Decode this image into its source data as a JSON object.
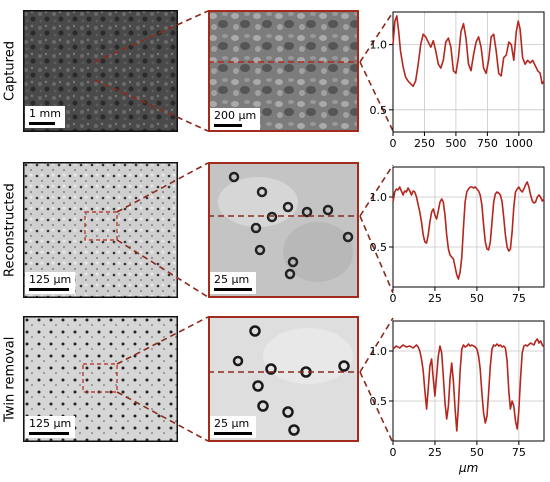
{
  "rows": [
    {
      "label": "Captured",
      "full_scale": "1 mm",
      "zoom_scale": "200 µm",
      "chart": {
        "x_ticks": [
          0,
          250,
          500,
          750,
          1000
        ],
        "x_max": 1200,
        "y_ticks": [
          0.5,
          1.0
        ],
        "y_min": 0.33,
        "y_max": 1.25,
        "points": [
          [
            0,
            1.0
          ],
          [
            15,
            1.18
          ],
          [
            30,
            1.22
          ],
          [
            45,
            1.1
          ],
          [
            60,
            0.95
          ],
          [
            80,
            0.83
          ],
          [
            100,
            0.75
          ],
          [
            120,
            0.72
          ],
          [
            140,
            0.7
          ],
          [
            160,
            0.68
          ],
          [
            180,
            0.72
          ],
          [
            200,
            0.85
          ],
          [
            220,
            1.0
          ],
          [
            240,
            1.08
          ],
          [
            260,
            1.06
          ],
          [
            280,
            1.02
          ],
          [
            300,
            0.98
          ],
          [
            320,
            1.03
          ],
          [
            340,
            0.95
          ],
          [
            360,
            0.85
          ],
          [
            380,
            0.82
          ],
          [
            400,
            0.88
          ],
          [
            420,
            1.02
          ],
          [
            440,
            1.05
          ],
          [
            460,
            0.98
          ],
          [
            480,
            0.8
          ],
          [
            500,
            0.78
          ],
          [
            520,
            0.9
          ],
          [
            540,
            1.1
          ],
          [
            560,
            1.16
          ],
          [
            580,
            1.05
          ],
          [
            600,
            0.85
          ],
          [
            620,
            0.8
          ],
          [
            640,
            0.92
          ],
          [
            660,
            1.02
          ],
          [
            680,
            1.06
          ],
          [
            700,
            0.98
          ],
          [
            720,
            0.82
          ],
          [
            740,
            0.78
          ],
          [
            760,
            0.88
          ],
          [
            780,
            1.06
          ],
          [
            800,
            1.08
          ],
          [
            820,
            0.95
          ],
          [
            840,
            0.78
          ],
          [
            860,
            0.76
          ],
          [
            880,
            0.9
          ],
          [
            900,
            0.92
          ],
          [
            920,
            1.02
          ],
          [
            940,
            1.0
          ],
          [
            960,
            0.88
          ],
          [
            980,
            1.1
          ],
          [
            995,
            1.18
          ],
          [
            1010,
            1.12
          ],
          [
            1030,
            0.9
          ],
          [
            1050,
            0.85
          ],
          [
            1070,
            0.88
          ],
          [
            1090,
            0.86
          ],
          [
            1110,
            0.88
          ],
          [
            1130,
            0.84
          ],
          [
            1150,
            0.8
          ],
          [
            1170,
            0.78
          ],
          [
            1185,
            0.7
          ],
          [
            1200,
            0.72
          ]
        ]
      }
    },
    {
      "label": "Reconstructed",
      "full_scale": "125 µm",
      "zoom_scale": "25 µm",
      "chart": {
        "x_ticks": [
          0,
          25,
          50,
          75
        ],
        "x_max": 90,
        "y_ticks": [
          0.5,
          1.0
        ],
        "y_min": 0.1,
        "y_max": 1.3,
        "points": [
          [
            0,
            0.95
          ],
          [
            1,
            1.05
          ],
          [
            2,
            1.08
          ],
          [
            3,
            1.07
          ],
          [
            4,
            1.1
          ],
          [
            5,
            1.06
          ],
          [
            6,
            1.02
          ],
          [
            7,
            1.06
          ],
          [
            8,
            1.05
          ],
          [
            9,
            1.09
          ],
          [
            10,
            1.06
          ],
          [
            11,
            1.02
          ],
          [
            12,
            1.06
          ],
          [
            13,
            1.05
          ],
          [
            14,
            1.0
          ],
          [
            15,
            0.92
          ],
          [
            16,
            0.85
          ],
          [
            17,
            0.75
          ],
          [
            18,
            0.62
          ],
          [
            19,
            0.55
          ],
          [
            20,
            0.54
          ],
          [
            21,
            0.62
          ],
          [
            22,
            0.75
          ],
          [
            23,
            0.85
          ],
          [
            24,
            0.88
          ],
          [
            25,
            0.82
          ],
          [
            26,
            0.78
          ],
          [
            27,
            0.86
          ],
          [
            28,
            0.95
          ],
          [
            29,
            0.98
          ],
          [
            30,
            0.95
          ],
          [
            31,
            0.82
          ],
          [
            32,
            0.62
          ],
          [
            33,
            0.48
          ],
          [
            34,
            0.42
          ],
          [
            35,
            0.4
          ],
          [
            36,
            0.38
          ],
          [
            37,
            0.3
          ],
          [
            38,
            0.22
          ],
          [
            39,
            0.18
          ],
          [
            40,
            0.25
          ],
          [
            41,
            0.4
          ],
          [
            42,
            0.7
          ],
          [
            43,
            0.95
          ],
          [
            44,
            1.05
          ],
          [
            45,
            1.08
          ],
          [
            46,
            1.1
          ],
          [
            47,
            1.1
          ],
          [
            48,
            1.09
          ],
          [
            49,
            1.1
          ],
          [
            50,
            1.08
          ],
          [
            51,
            1.06
          ],
          [
            52,
            1.02
          ],
          [
            53,
            0.92
          ],
          [
            54,
            0.72
          ],
          [
            55,
            0.55
          ],
          [
            56,
            0.48
          ],
          [
            57,
            0.47
          ],
          [
            58,
            0.55
          ],
          [
            59,
            0.75
          ],
          [
            60,
            0.95
          ],
          [
            61,
            1.03
          ],
          [
            62,
            1.05
          ],
          [
            63,
            1.04
          ],
          [
            64,
            1.02
          ],
          [
            65,
            0.95
          ],
          [
            66,
            0.8
          ],
          [
            67,
            0.62
          ],
          [
            68,
            0.5
          ],
          [
            69,
            0.46
          ],
          [
            70,
            0.48
          ],
          [
            71,
            0.65
          ],
          [
            72,
            0.9
          ],
          [
            73,
            1.05
          ],
          [
            74,
            1.08
          ],
          [
            75,
            1.1
          ],
          [
            76,
            1.07
          ],
          [
            77,
            1.05
          ],
          [
            78,
            1.08
          ],
          [
            79,
            1.12
          ],
          [
            80,
            1.15
          ],
          [
            81,
            1.1
          ],
          [
            82,
            1.02
          ],
          [
            83,
            0.96
          ],
          [
            84,
            0.94
          ],
          [
            85,
            0.95
          ],
          [
            86,
            1.0
          ],
          [
            87,
            1.02
          ],
          [
            88,
            1.0
          ],
          [
            89,
            0.96
          ],
          [
            90,
            0.98
          ]
        ]
      }
    },
    {
      "label": "Twin removal",
      "full_scale": "125 µm",
      "zoom_scale": "25 µm",
      "chart": {
        "x_ticks": [
          0,
          25,
          50,
          75
        ],
        "x_max": 90,
        "y_ticks": [
          0.5,
          1.0
        ],
        "y_min": 0.1,
        "y_max": 1.3,
        "points": [
          [
            0,
            1.02
          ],
          [
            2,
            1.05
          ],
          [
            4,
            1.03
          ],
          [
            6,
            1.06
          ],
          [
            8,
            1.04
          ],
          [
            10,
            1.05
          ],
          [
            12,
            1.03
          ],
          [
            14,
            1.06
          ],
          [
            15,
            1.04
          ],
          [
            16,
            1.0
          ],
          [
            17,
            0.92
          ],
          [
            18,
            0.8
          ],
          [
            19,
            0.6
          ],
          [
            20,
            0.42
          ],
          [
            21,
            0.62
          ],
          [
            22,
            0.85
          ],
          [
            23,
            0.92
          ],
          [
            24,
            0.72
          ],
          [
            25,
            0.55
          ],
          [
            26,
            0.75
          ],
          [
            27,
            0.95
          ],
          [
            28,
            1.05
          ],
          [
            29,
            0.98
          ],
          [
            30,
            0.75
          ],
          [
            31,
            0.48
          ],
          [
            32,
            0.32
          ],
          [
            33,
            0.45
          ],
          [
            34,
            0.72
          ],
          [
            35,
            0.88
          ],
          [
            36,
            0.7
          ],
          [
            37,
            0.42
          ],
          [
            38,
            0.2
          ],
          [
            39,
            0.45
          ],
          [
            40,
            0.8
          ],
          [
            41,
            1.02
          ],
          [
            42,
            1.06
          ],
          [
            43,
            1.04
          ],
          [
            44,
            1.05
          ],
          [
            45,
            1.07
          ],
          [
            46,
            1.05
          ],
          [
            47,
            1.06
          ],
          [
            48,
            1.05
          ],
          [
            49,
            1.04
          ],
          [
            50,
            1.02
          ],
          [
            51,
            0.95
          ],
          [
            52,
            0.82
          ],
          [
            53,
            0.58
          ],
          [
            54,
            0.38
          ],
          [
            55,
            0.28
          ],
          [
            56,
            0.35
          ],
          [
            57,
            0.58
          ],
          [
            58,
            0.85
          ],
          [
            59,
            1.02
          ],
          [
            60,
            1.06
          ],
          [
            61,
            1.05
          ],
          [
            62,
            1.07
          ],
          [
            63,
            1.05
          ],
          [
            64,
            1.06
          ],
          [
            65,
            1.04
          ],
          [
            66,
            1.05
          ],
          [
            67,
            1.03
          ],
          [
            68,
            0.9
          ],
          [
            69,
            0.6
          ],
          [
            70,
            0.42
          ],
          [
            71,
            0.5
          ],
          [
            72,
            0.45
          ],
          [
            73,
            0.3
          ],
          [
            74,
            0.22
          ],
          [
            75,
            0.4
          ],
          [
            76,
            0.72
          ],
          [
            77,
            0.98
          ],
          [
            78,
            1.05
          ],
          [
            79,
            1.06
          ],
          [
            80,
            1.05
          ],
          [
            82,
            1.08
          ],
          [
            84,
            1.06
          ],
          [
            85,
            1.1
          ],
          [
            86,
            1.12
          ],
          [
            87,
            1.08
          ],
          [
            88,
            1.1
          ],
          [
            89,
            1.06
          ],
          [
            90,
            1.04
          ]
        ]
      }
    }
  ],
  "x_axis_label": "µm",
  "colors": {
    "profile": "#b5261e",
    "frame": "#a12c1e",
    "dash": "#8b2a1c",
    "grid": "#c8c8c8"
  }
}
